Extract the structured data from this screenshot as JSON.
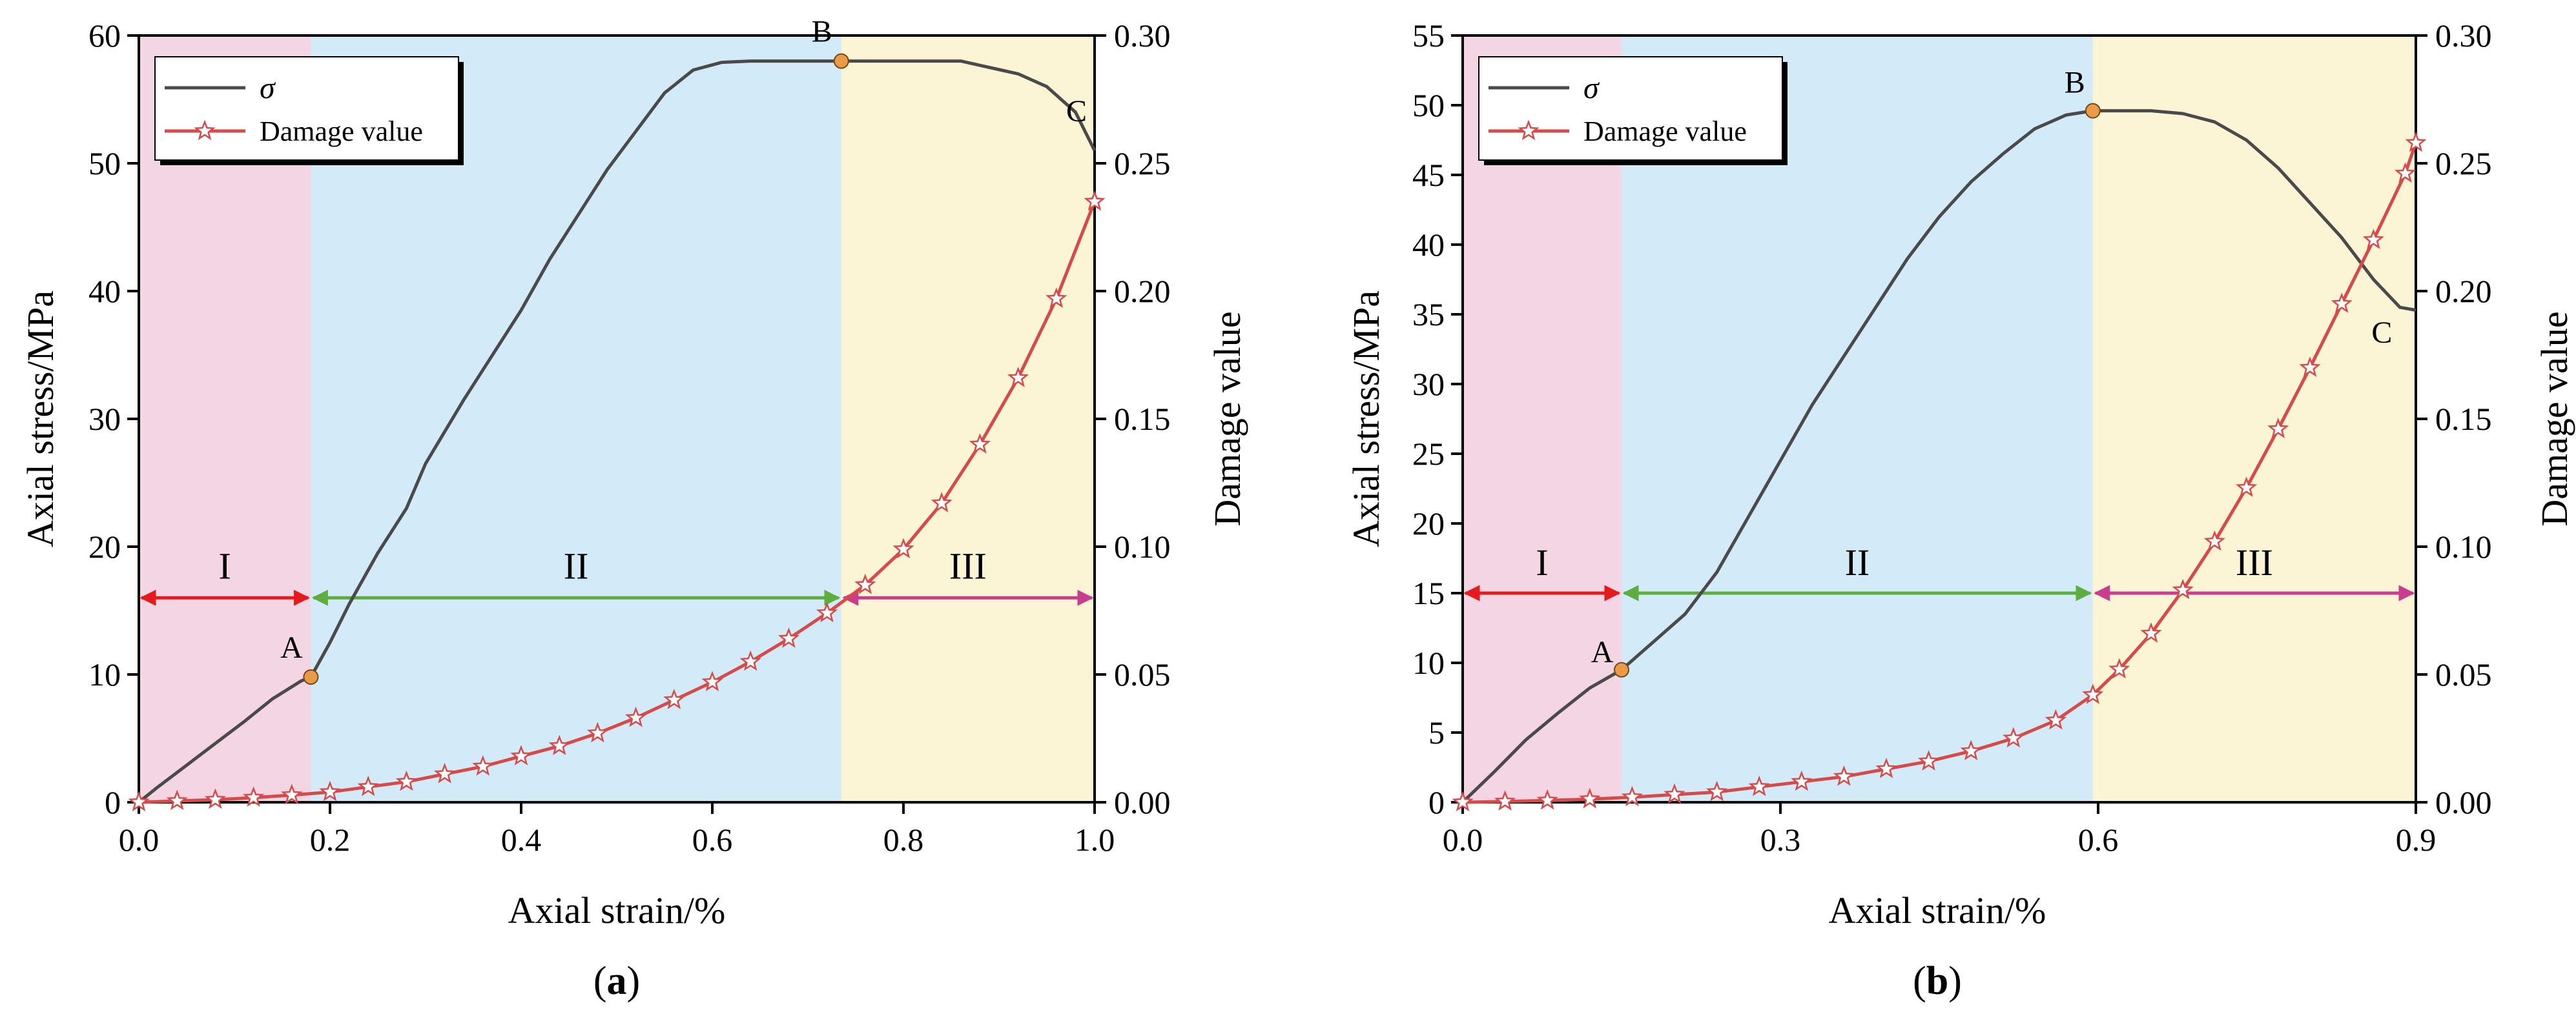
{
  "colors": {
    "stage1": "#f4d5e3",
    "stage2": "#d3eaf8",
    "stage3": "#fbf5d6",
    "stress_line": "#4a4a4a",
    "damage_line": "#d64a4a",
    "point_fill": "#ec9a45",
    "arrow1": "#e41a1c",
    "arrow2": "#5ead3f",
    "arrow3": "#c93d8e"
  },
  "chart_data": [
    {
      "type": "line",
      "panel_label": "a",
      "xlabel": "Axial strain/%",
      "ylabel_left": "Axial stress/MPa",
      "ylabel_right": "Damage value",
      "xlim": [
        0,
        1.0
      ],
      "ylim_left": [
        0,
        60
      ],
      "ylim_right": [
        0,
        0.3
      ],
      "xticks": [
        "0.0",
        "0.2",
        "0.4",
        "0.6",
        "0.8",
        "1.0"
      ],
      "yticks_left": [
        "0",
        "10",
        "20",
        "30",
        "40",
        "50",
        "60"
      ],
      "yticks_right": [
        "0.00",
        "0.05",
        "0.10",
        "0.15",
        "0.20",
        "0.25",
        "0.30"
      ],
      "legend": [
        "σ",
        "Damage value"
      ],
      "stages": [
        {
          "name": "I",
          "x0": 0.0,
          "x1": 0.18
        },
        {
          "name": "II",
          "x0": 0.18,
          "x1": 0.735
        },
        {
          "name": "III",
          "x0": 0.735,
          "x1": 1.0
        }
      ],
      "stage_arrow_y": 16,
      "stage_label_y": 17.5,
      "points": [
        {
          "label": "A",
          "x": 0.18,
          "y": 9.8
        },
        {
          "label": "B",
          "x": 0.735,
          "y": 58
        },
        {
          "label": "C",
          "x": 1.0,
          "y": 51
        }
      ],
      "series": [
        {
          "name": "σ",
          "axis": "left",
          "x": [
            0,
            0.02,
            0.05,
            0.08,
            0.11,
            0.14,
            0.17,
            0.18,
            0.2,
            0.22,
            0.25,
            0.28,
            0.3,
            0.32,
            0.34,
            0.37,
            0.4,
            0.43,
            0.46,
            0.49,
            0.52,
            0.55,
            0.58,
            0.61,
            0.64,
            0.67,
            0.7,
            0.735,
            0.77,
            0.8,
            0.83,
            0.86,
            0.89,
            0.92,
            0.95,
            0.98,
            1.0
          ],
          "y": [
            0,
            1.2,
            2.9,
            4.6,
            6.3,
            8.1,
            9.5,
            9.8,
            12.5,
            15.5,
            19.5,
            23,
            26.5,
            29,
            31.5,
            35,
            38.5,
            42.5,
            46,
            49.5,
            52.5,
            55.5,
            57.3,
            57.9,
            58,
            58,
            58,
            58,
            58,
            58,
            58,
            58,
            57.5,
            57,
            56,
            54,
            51
          ]
        },
        {
          "name": "Damage value",
          "axis": "right",
          "x": [
            0.0,
            0.04,
            0.08,
            0.12,
            0.16,
            0.2,
            0.24,
            0.28,
            0.32,
            0.36,
            0.4,
            0.44,
            0.48,
            0.52,
            0.56,
            0.6,
            0.64,
            0.68,
            0.72,
            0.76,
            0.8,
            0.84,
            0.88,
            0.92,
            0.96,
            1.0
          ],
          "y": [
            0.0,
            0.0005,
            0.001,
            0.0018,
            0.0028,
            0.004,
            0.006,
            0.008,
            0.011,
            0.014,
            0.018,
            0.022,
            0.027,
            0.033,
            0.04,
            0.047,
            0.055,
            0.064,
            0.074,
            0.085,
            0.099,
            0.117,
            0.14,
            0.166,
            0.197,
            0.235
          ]
        }
      ]
    },
    {
      "type": "line",
      "panel_label": "b",
      "xlabel": "Axial strain/%",
      "ylabel_left": "Axial stress/MPa",
      "ylabel_right": "Damage value",
      "xlim": [
        0,
        0.9
      ],
      "ylim_left": [
        0,
        55
      ],
      "ylim_right": [
        0,
        0.3
      ],
      "xticks": [
        "0.0",
        "0.3",
        "0.6",
        "0.9"
      ],
      "yticks_left": [
        "0",
        "5",
        "10",
        "15",
        "20",
        "25",
        "30",
        "35",
        "40",
        "45",
        "50",
        "55"
      ],
      "yticks_right": [
        "0.00",
        "0.05",
        "0.10",
        "0.15",
        "0.20",
        "0.25",
        "0.30"
      ],
      "legend": [
        "σ",
        "Damage value"
      ],
      "stages": [
        {
          "name": "I",
          "x0": 0.0,
          "x1": 0.15
        },
        {
          "name": "II",
          "x0": 0.15,
          "x1": 0.595
        },
        {
          "name": "III",
          "x0": 0.595,
          "x1": 0.9
        }
      ],
      "stage_arrow_y": 15,
      "stage_label_y": 16.3,
      "points": [
        {
          "label": "A",
          "x": 0.15,
          "y": 9.5
        },
        {
          "label": "B",
          "x": 0.595,
          "y": 49.6
        },
        {
          "label": "C",
          "x": 0.885,
          "y": 35.5
        }
      ],
      "series": [
        {
          "name": "σ",
          "axis": "left",
          "x": [
            0,
            0.03,
            0.06,
            0.09,
            0.12,
            0.15,
            0.18,
            0.21,
            0.24,
            0.27,
            0.3,
            0.33,
            0.36,
            0.39,
            0.42,
            0.45,
            0.48,
            0.51,
            0.54,
            0.57,
            0.595,
            0.62,
            0.65,
            0.68,
            0.71,
            0.74,
            0.77,
            0.8,
            0.83,
            0.86,
            0.885,
            0.9
          ],
          "y": [
            0,
            2.2,
            4.5,
            6.4,
            8.2,
            9.5,
            11.5,
            13.5,
            16.5,
            20.5,
            24.5,
            28.5,
            32,
            35.5,
            39,
            42,
            44.5,
            46.5,
            48.3,
            49.3,
            49.6,
            49.6,
            49.6,
            49.4,
            48.8,
            47.5,
            45.5,
            43,
            40.5,
            37.5,
            35.5,
            35.3
          ]
        },
        {
          "name": "Damage value",
          "axis": "right",
          "x": [
            0.0,
            0.04,
            0.08,
            0.12,
            0.16,
            0.2,
            0.24,
            0.28,
            0.32,
            0.36,
            0.4,
            0.44,
            0.48,
            0.52,
            0.56,
            0.595,
            0.62,
            0.65,
            0.68,
            0.71,
            0.74,
            0.77,
            0.8,
            0.83,
            0.86,
            0.89,
            0.9
          ],
          "y": [
            0.0,
            0.0003,
            0.0007,
            0.0012,
            0.002,
            0.003,
            0.004,
            0.006,
            0.008,
            0.01,
            0.013,
            0.016,
            0.02,
            0.025,
            0.032,
            0.042,
            0.052,
            0.066,
            0.083,
            0.102,
            0.123,
            0.146,
            0.17,
            0.195,
            0.22,
            0.246,
            0.258
          ]
        }
      ]
    }
  ]
}
